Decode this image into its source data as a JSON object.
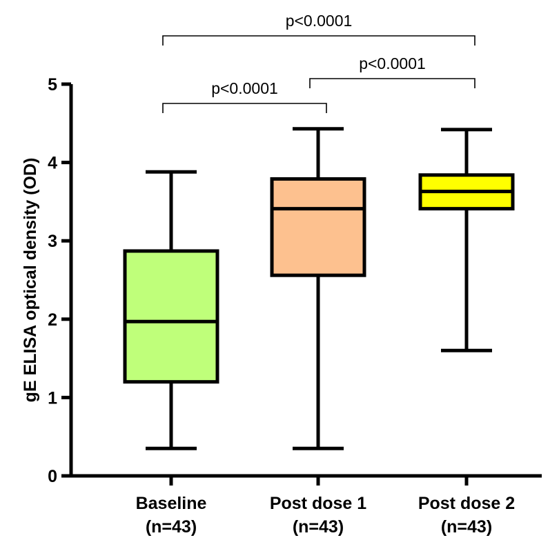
{
  "chart_data": {
    "type": "box",
    "ylabel": "gE ELISA optical density (OD)",
    "ylim": [
      0,
      5
    ],
    "yticks": [
      "0",
      "1",
      "2",
      "3",
      "4",
      "5"
    ],
    "grid": false,
    "categories": [
      {
        "line1": "Baseline",
        "line2": "(n=43)"
      },
      {
        "line1": "Post dose 1",
        "line2": "(n=43)"
      },
      {
        "line1": "Post dose 2",
        "line2": "(n=43)"
      }
    ],
    "boxes": [
      {
        "min": 0.35,
        "q1": 1.2,
        "median": 1.97,
        "q3": 2.87,
        "max": 3.88,
        "color": "#bfff7a"
      },
      {
        "min": 0.35,
        "q1": 2.56,
        "median": 3.41,
        "q3": 3.79,
        "max": 4.43,
        "color": "#fdc18f"
      },
      {
        "min": 1.6,
        "q1": 3.41,
        "median": 3.63,
        "q3": 3.84,
        "max": 4.42,
        "color": "#ffff00"
      }
    ],
    "significance": [
      {
        "from": 0,
        "to": 1,
        "label": "p<0.0001",
        "level": 0
      },
      {
        "from": 1,
        "to": 2,
        "label": "p<0.0001",
        "level": 1
      },
      {
        "from": 0,
        "to": 2,
        "label": "p<0.0001",
        "level": 2
      }
    ]
  }
}
